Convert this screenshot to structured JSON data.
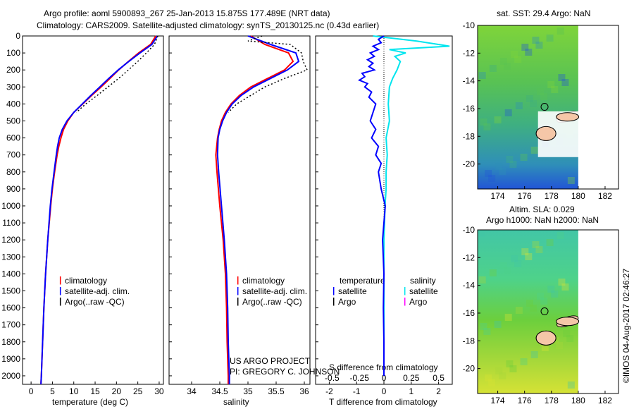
{
  "header": {
    "line1": "Argo profile: aoml 5900893_267 25-Jan-2013 15.875S 177.489E (NRT data)",
    "line2": "Climatology: CARS2009. Satellite-adjusted climatology: synTS_20130125.nc (0.43d earlier)"
  },
  "colors": {
    "clim": "#ff0000",
    "sat": "#0000ff",
    "argo": "#000000",
    "sal_sat": "#00e5ee",
    "sal_argo": "#ff00ff"
  },
  "chart_data": [
    {
      "type": "line",
      "id": "temperature",
      "xlabel": "temperature (deg C)",
      "ylabel": "",
      "xlim": [
        -2,
        31
      ],
      "ylim": [
        0,
        2050
      ],
      "xticks": [
        0,
        5,
        10,
        15,
        20,
        25,
        30
      ],
      "yticks": [
        0,
        100,
        200,
        300,
        400,
        500,
        600,
        700,
        800,
        900,
        1000,
        1100,
        1200,
        1300,
        1400,
        1500,
        1600,
        1700,
        1800,
        1900,
        2000
      ],
      "legend": [
        "climatology",
        "satellite-adj. clim.",
        "Argo(..raw -QC)"
      ],
      "series": [
        {
          "name": "climatology",
          "depth": [
            0,
            50,
            100,
            150,
            200,
            250,
            300,
            350,
            400,
            450,
            500,
            550,
            600,
            650,
            700,
            800,
            900,
            1000,
            1200,
            1400,
            1600,
            1800,
            2000,
            2050
          ],
          "values": [
            29.2,
            28.0,
            25.2,
            22.8,
            20.5,
            18.5,
            16.4,
            14.2,
            12.1,
            10.0,
            8.6,
            7.6,
            7.0,
            6.5,
            6.1,
            5.5,
            5.0,
            4.6,
            3.9,
            3.4,
            3.0,
            2.7,
            2.4,
            2.3
          ]
        },
        {
          "name": "satellite-adj. clim.",
          "depth": [
            0,
            50,
            100,
            150,
            200,
            250,
            300,
            350,
            400,
            450,
            500,
            550,
            600,
            650,
            700,
            800,
            900,
            1000,
            1200,
            1400,
            1600,
            1800,
            2000,
            2050
          ],
          "values": [
            29.6,
            28.3,
            25.5,
            22.9,
            20.4,
            18.2,
            16.1,
            14.0,
            12.0,
            10.0,
            8.4,
            7.3,
            6.6,
            6.2,
            5.9,
            5.4,
            4.9,
            4.5,
            3.9,
            3.4,
            3.0,
            2.7,
            2.4,
            2.3
          ]
        },
        {
          "name": "Argo(..raw -QC)",
          "depth": [
            0,
            50,
            100,
            150,
            200,
            250,
            300,
            350,
            400,
            450
          ],
          "values": [
            29.7,
            28.9,
            27.0,
            25.0,
            22.8,
            20.5,
            18.0,
            15.5,
            12.8,
            10.6
          ]
        }
      ]
    },
    {
      "type": "line",
      "id": "salinity",
      "xlabel": "salinity",
      "ylabel": "",
      "xlim": [
        33.6,
        36.1
      ],
      "ylim": [
        0,
        2050
      ],
      "xticks": [
        34,
        34.5,
        35,
        35.5,
        36
      ],
      "legend": [
        "climatology",
        "satellite-adj. clim.",
        "Argo(..raw -QC)"
      ],
      "series": [
        {
          "name": "climatology",
          "depth": [
            0,
            50,
            100,
            150,
            200,
            250,
            300,
            350,
            400,
            450,
            500,
            550,
            600,
            700,
            800,
            1000,
            1200,
            1400,
            1600,
            1800,
            2000,
            2050
          ],
          "values": [
            35.05,
            35.3,
            35.72,
            35.8,
            35.65,
            35.35,
            35.05,
            34.85,
            34.7,
            34.6,
            34.53,
            34.49,
            34.46,
            34.43,
            34.45,
            34.5,
            34.56,
            34.6,
            34.62,
            34.63,
            34.65,
            34.65
          ]
        },
        {
          "name": "satellite-adj. clim.",
          "depth": [
            0,
            50,
            100,
            150,
            200,
            250,
            300,
            350,
            400,
            450,
            500,
            550,
            600,
            700,
            800,
            1000,
            1200,
            1400,
            1600,
            1800,
            2000,
            2050
          ],
          "values": [
            35.0,
            35.4,
            35.85,
            35.9,
            35.7,
            35.4,
            35.1,
            34.88,
            34.72,
            34.62,
            34.55,
            34.5,
            34.47,
            34.46,
            34.48,
            34.53,
            34.58,
            34.62,
            34.64,
            34.65,
            34.67,
            34.67
          ]
        },
        {
          "name": "Argo(..raw -QC)",
          "depth": [
            0,
            30,
            50,
            100,
            150,
            200,
            250,
            300,
            350,
            400,
            450
          ],
          "values": [
            35.25,
            35.0,
            35.75,
            35.95,
            35.98,
            36.05,
            35.65,
            35.3,
            35.05,
            34.8,
            34.65
          ]
        }
      ]
    },
    {
      "type": "line",
      "id": "difference",
      "xlabel": "T difference from climatology",
      "xlabel2": "S difference from climatology",
      "xlim": [
        -2.5,
        2.5
      ],
      "ylim": [
        0,
        2050
      ],
      "xticks_t": [
        -2,
        -1,
        0,
        1,
        2
      ],
      "xticks_s": [
        -0.5,
        -0.25,
        0,
        0.25,
        0.5
      ],
      "legend_titles": [
        "temperature",
        "salinity"
      ],
      "legend": [
        "satellite",
        "Argo",
        "satellite",
        "Argo"
      ],
      "series": [
        {
          "name": "temperature satellite",
          "depth": [
            0,
            20,
            40,
            60,
            80,
            100,
            120,
            140,
            160,
            180,
            200,
            220,
            240,
            260,
            280,
            300,
            330,
            360,
            400,
            450,
            500,
            550,
            600,
            650,
            700,
            750,
            800,
            900,
            1000,
            1100,
            1200,
            1400,
            1600,
            1800,
            2000
          ],
          "values": [
            0.0,
            -0.2,
            -0.1,
            -0.4,
            -0.2,
            -0.5,
            -0.35,
            -0.6,
            -0.4,
            -0.55,
            -0.35,
            -0.8,
            -0.7,
            -0.9,
            -0.6,
            -0.7,
            -0.45,
            -0.55,
            -0.3,
            -0.4,
            -0.5,
            -0.3,
            -0.45,
            -0.2,
            -0.3,
            -0.1,
            -0.2,
            -0.1,
            0.05,
            0.0,
            -0.05,
            0.0,
            -0.02,
            0.0,
            0.0
          ]
        },
        {
          "name": "salinity satellite",
          "depth": [
            0,
            30,
            60,
            80,
            100,
            120,
            150,
            200,
            250,
            300,
            400,
            500,
            600,
            700,
            800,
            900,
            1000,
            1200,
            1400,
            1600,
            1800,
            2000
          ],
          "values": [
            -0.1,
            0.3,
            0.6,
            0.05,
            0.2,
            0.1,
            0.15,
            0.12,
            0.08,
            0.05,
            0.04,
            0.05,
            0.02,
            0.03,
            0.02,
            0.02,
            0.01,
            0.0,
            0.0,
            0.0,
            0.0,
            0.0
          ]
        }
      ]
    },
    {
      "type": "heatmap",
      "id": "sst-map",
      "title": "sat. SST: 29.4  Argo: NaN",
      "xticks": [
        174,
        176,
        178,
        180,
        182
      ],
      "yticks": [
        -10,
        -12,
        -14,
        -16,
        -18,
        -20
      ],
      "xlim": [
        172.5,
        183
      ],
      "ylim": [
        -21.8,
        -10
      ],
      "marker": {
        "lon": 177.489,
        "lat": -15.875
      }
    },
    {
      "type": "heatmap",
      "id": "sla-map",
      "title": "Altim. SLA: 0.029",
      "subtitle": "Argo h1000: NaN  h2000: NaN",
      "xticks": [
        174,
        176,
        178,
        180,
        182
      ],
      "yticks": [
        -10,
        -12,
        -14,
        -16,
        -18,
        -20
      ],
      "xlim": [
        172.5,
        183
      ],
      "ylim": [
        -21.8,
        -10
      ],
      "marker": {
        "lon": 177.489,
        "lat": -15.875
      }
    }
  ],
  "annotations": {
    "project_line1": "US ARGO PROJECT",
    "project_line2": "PI: GREGORY C. JOHNSON",
    "stamp": "©IMOS 04-Aug-2017 02:46:27"
  }
}
